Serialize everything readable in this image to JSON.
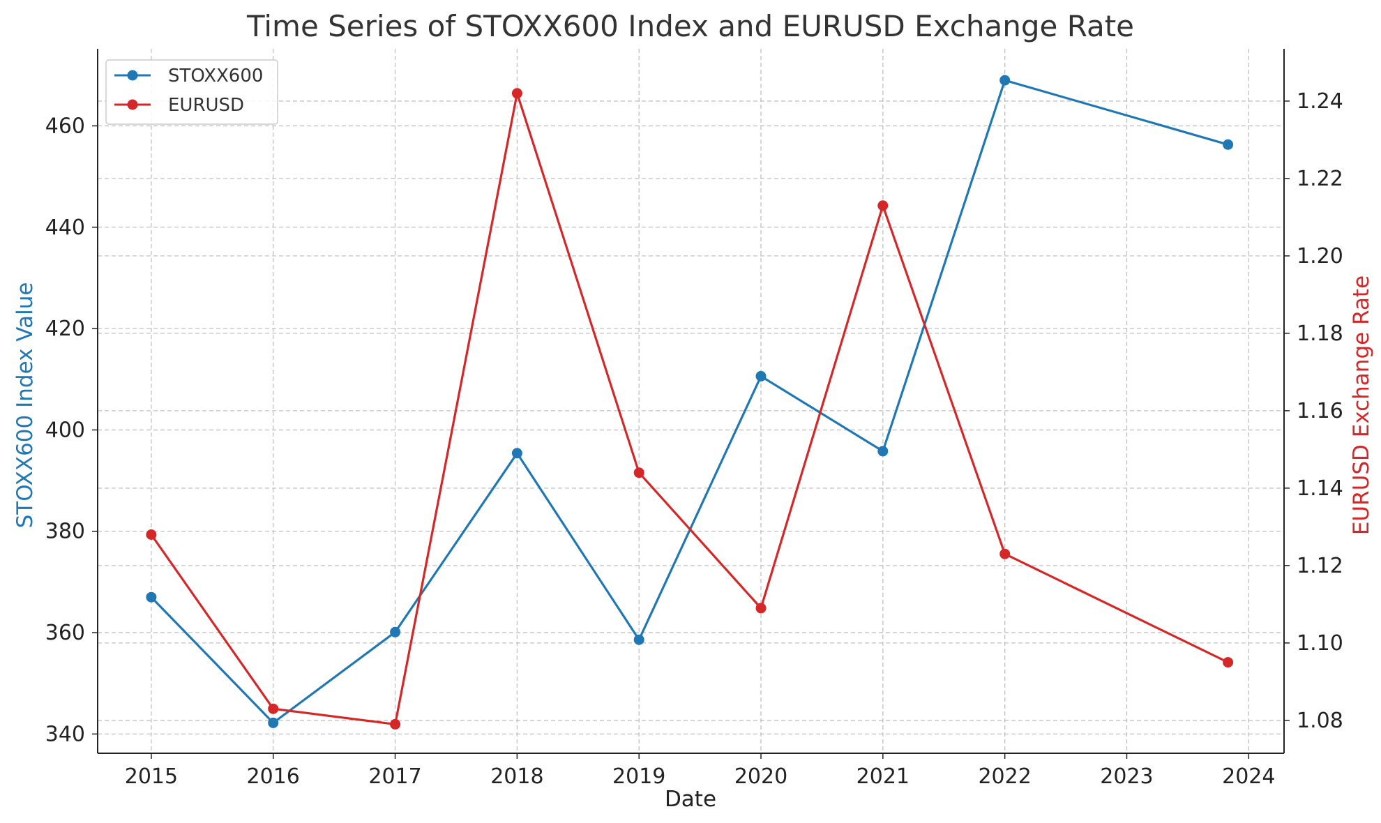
{
  "chart_data": {
    "type": "line",
    "title": "Time Series of STOXX600 Index and EURUSD Exchange Rate",
    "xlabel": "Date",
    "ylabel_left": "STOXX600 Index Value",
    "ylabel_right": "EURUSD Exchange Rate",
    "x_ticks": [
      "2015",
      "2016",
      "2017",
      "2018",
      "2019",
      "2020",
      "2021",
      "2022",
      "2023",
      "2024"
    ],
    "x": [
      "2015-01",
      "2016-01",
      "2017-01",
      "2018-01",
      "2019-01",
      "2020-01",
      "2021-01",
      "2022-01",
      "2023-11"
    ],
    "x_years": [
      2015.0,
      2016.0,
      2017.0,
      2018.0,
      2019.0,
      2020.0,
      2021.0,
      2022.0,
      2023.83
    ],
    "x_range": [
      2014.56,
      2024.29
    ],
    "y_left_range": [
      336.2,
      475.2
    ],
    "y_left_ticks": [
      340,
      360,
      380,
      400,
      420,
      440,
      460
    ],
    "y_right_range": [
      1.0715,
      1.2535
    ],
    "y_right_ticks": [
      "1.08",
      "1.10",
      "1.12",
      "1.14",
      "1.16",
      "1.18",
      "1.20",
      "1.22",
      "1.24"
    ],
    "grid": true,
    "legend_position": "top-left",
    "series": [
      {
        "name": "STOXX600",
        "axis": "left",
        "color": "#1f77b4",
        "values": [
          367.0,
          342.2,
          360.1,
          395.4,
          358.6,
          410.6,
          395.8,
          469.0,
          456.3
        ]
      },
      {
        "name": "EURUSD",
        "axis": "right",
        "color": "#d62728",
        "values": [
          1.128,
          1.083,
          1.079,
          1.242,
          1.144,
          1.109,
          1.213,
          1.123,
          1.095
        ]
      }
    ]
  }
}
